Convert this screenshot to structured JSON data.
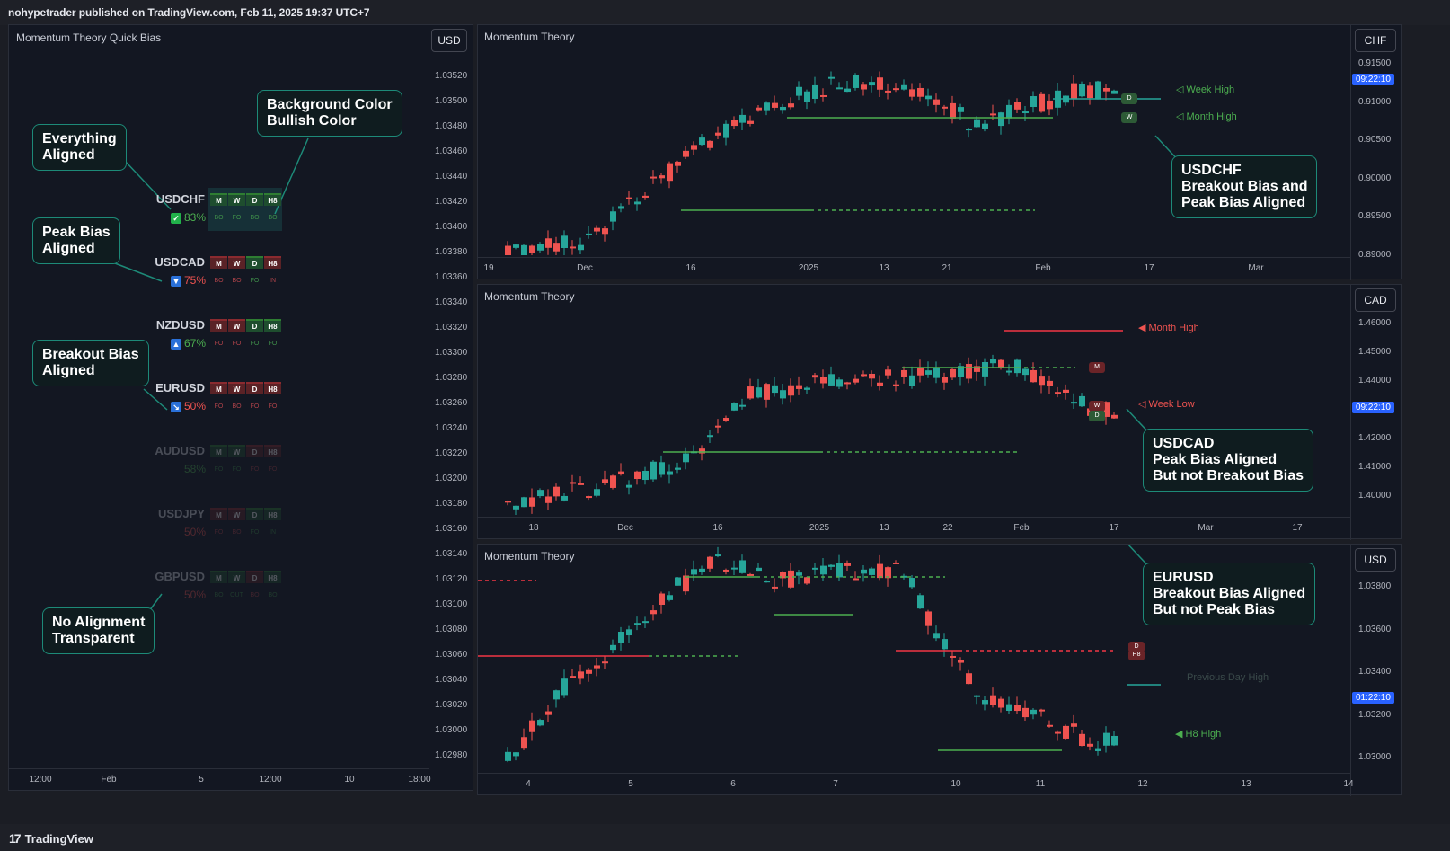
{
  "header": {
    "publish_line": "nohypetrader published on TradingView.com, Feb 11, 2025 19:37 UTC+7"
  },
  "footer": {
    "brand": "TradingView",
    "logo_glyph": "17"
  },
  "colors": {
    "bull": "#26a69a",
    "bear": "#ef5350",
    "green_line": "#4caf50",
    "red_line": "#f23645",
    "accent_blue": "#2962ff",
    "callout_border": "#1d8a78"
  },
  "left_panel": {
    "title": "Momentum Theory Quick Bias",
    "currency": "USD",
    "y_labels": [
      "1.03520",
      "1.03500",
      "1.03480",
      "1.03460",
      "1.03440",
      "1.03420",
      "1.03400",
      "1.03380",
      "1.03360",
      "1.03340",
      "1.03320",
      "1.03300",
      "1.03280",
      "1.03260",
      "1.03240",
      "1.03220",
      "1.03200",
      "1.03180",
      "1.03160",
      "1.03140",
      "1.03120",
      "1.03100",
      "1.03080",
      "1.03060",
      "1.03040",
      "1.03020",
      "1.03000",
      "1.02980"
    ],
    "x_labels": [
      "12:00",
      "Feb",
      "5",
      "12:00",
      "10",
      "18:00"
    ],
    "rows": [
      {
        "symbol": "USDCHF",
        "icon": "✓",
        "icon_name": "checkmark-icon",
        "pct": "83%",
        "pct_color": "#4caf50",
        "cells": [
          "M",
          "W",
          "D",
          "H8"
        ],
        "cell_state": [
          "bull",
          "bull",
          "bull",
          "bull"
        ],
        "subs": [
          "BO",
          "FO",
          "BO",
          "BO"
        ],
        "opacity": 1
      },
      {
        "symbol": "USDCAD",
        "icon": "▼",
        "icon_name": "triangle-down-icon",
        "pct": "75%",
        "pct_color": "#ef5350",
        "cells": [
          "M",
          "W",
          "D",
          "H8"
        ],
        "cell_state": [
          "bear",
          "bear",
          "bull",
          "bear"
        ],
        "subs": [
          "BO",
          "BO",
          "FO",
          "IN"
        ],
        "opacity": 1
      },
      {
        "symbol": "NZDUSD",
        "icon": "▲",
        "icon_name": "triangle-up-icon",
        "pct": "67%",
        "pct_color": "#4caf50",
        "cells": [
          "M",
          "W",
          "D",
          "H8"
        ],
        "cell_state": [
          "bear",
          "bear",
          "bull",
          "bull"
        ],
        "subs": [
          "FO",
          "FO",
          "FO",
          "FO"
        ],
        "opacity": 1
      },
      {
        "symbol": "EURUSD",
        "icon": "↘",
        "icon_name": "arrow-down-right-icon",
        "pct": "50%",
        "pct_color": "#ef5350",
        "cells": [
          "M",
          "W",
          "D",
          "H8"
        ],
        "cell_state": [
          "bear",
          "bear",
          "bear",
          "bear"
        ],
        "subs": [
          "FO",
          "BO",
          "FO",
          "FO"
        ],
        "opacity": 1
      },
      {
        "symbol": "AUDUSD",
        "icon": "",
        "icon_name": "",
        "pct": "58%",
        "pct_color": "#4caf50",
        "cells": [
          "M",
          "W",
          "D",
          "H8"
        ],
        "cell_state": [
          "bull",
          "bull",
          "bear",
          "bear"
        ],
        "subs": [
          "FO",
          "FO",
          "FO",
          "FO"
        ],
        "opacity": 0.28
      },
      {
        "symbol": "USDJPY",
        "icon": "",
        "icon_name": "",
        "pct": "50%",
        "pct_color": "#ef5350",
        "cells": [
          "M",
          "W",
          "D",
          "H8"
        ],
        "cell_state": [
          "bear",
          "bear",
          "bull",
          "bull"
        ],
        "subs": [
          "FO",
          "BO",
          "FO",
          "IN"
        ],
        "opacity": 0.28
      },
      {
        "symbol": "GBPUSD",
        "icon": "",
        "icon_name": "",
        "pct": "50%",
        "pct_color": "#ef5350",
        "cells": [
          "M",
          "W",
          "D",
          "H8"
        ],
        "cell_state": [
          "bull",
          "bull",
          "bear",
          "bull"
        ],
        "subs": [
          "BO",
          "OUT",
          "BO",
          "BO"
        ],
        "opacity": 0.28
      }
    ],
    "callouts": {
      "everything": [
        "Everything",
        "Aligned"
      ],
      "background": [
        "Background Color",
        "Bullish Color"
      ],
      "peak": [
        "Peak Bias",
        "Aligned"
      ],
      "breakout": [
        "Breakout Bias",
        "Aligned"
      ],
      "none": [
        "No Alignment",
        "Transparent"
      ]
    }
  },
  "charts": [
    {
      "title": "Momentum Theory",
      "currency": "CHF",
      "price_tag": "09:22:10",
      "y_labels": [
        "0.91500",
        "0.91000",
        "0.90500",
        "0.90000",
        "0.89500",
        "0.89000"
      ],
      "x_labels": [
        "19",
        "Dec",
        "16",
        "2025",
        "13",
        "21",
        "Feb",
        "17",
        "Mar"
      ],
      "levels": [
        {
          "text": "◁ Week High",
          "color": "#4caf50"
        },
        {
          "text": "◁ Month High",
          "color": "#4caf50"
        }
      ],
      "markers": [
        "D",
        "W"
      ],
      "callout": [
        "USDCHF",
        "Breakout Bias and",
        "Peak Bias Aligned"
      ]
    },
    {
      "title": "Momentum Theory",
      "currency": "CAD",
      "price_tag": "09:22:10",
      "y_labels": [
        "1.46000",
        "1.45000",
        "1.44000",
        "1.43000",
        "1.42000",
        "1.41000",
        "1.40000"
      ],
      "x_labels": [
        "18",
        "Dec",
        "16",
        "2025",
        "13",
        "22",
        "Feb",
        "17",
        "Mar",
        "17"
      ],
      "levels": [
        {
          "text": "◀ Month High",
          "color": "#ef5350"
        },
        {
          "text": "◁ Week Low",
          "color": "#ef5350"
        }
      ],
      "markers": [
        "M",
        "W",
        "D"
      ],
      "callout": [
        "USDCAD",
        "Peak Bias Aligned",
        "But not Breakout Bias"
      ]
    },
    {
      "title": "Momentum Theory",
      "currency": "USD",
      "price_tag": "01:22:10",
      "y_labels": [
        "1.03800",
        "1.03600",
        "1.03400",
        "1.03200",
        "1.03000"
      ],
      "x_labels": [
        "4",
        "5",
        "6",
        "7",
        "10",
        "11",
        "12",
        "13",
        "14"
      ],
      "levels": [
        {
          "text": "Previous Day High",
          "color": "#3a4a4a"
        },
        {
          "text": "◀ H8 High",
          "color": "#4caf50"
        }
      ],
      "markers": [
        "D",
        "H8"
      ],
      "callout": [
        "EURUSD",
        "Breakout Bias Aligned",
        "But not Peak Bias"
      ]
    }
  ]
}
